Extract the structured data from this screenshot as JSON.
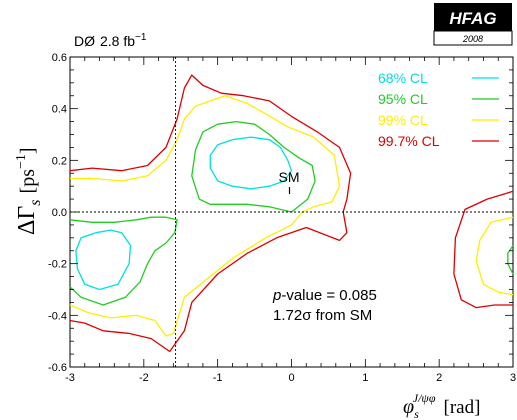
{
  "chart_data": {
    "type": "line",
    "experiment": "DØ",
    "luminosity": "2.8 fb",
    "luminosity_exp": "−1",
    "logo": "HFAG",
    "logo_year": "2008",
    "xlabel": "φ",
    "xlabel_sub": "s",
    "xlabel_sup": "J/ψφ",
    "xlabel_unit": "[rad]",
    "ylabel": "ΔΓ",
    "ylabel_sub": "s",
    "ylabel_unit": "[ps",
    "ylabel_unit_exp": "−1",
    "ylabel_unit_close": "]",
    "xlim": [
      -3,
      3
    ],
    "ylim": [
      -0.6,
      0.6
    ],
    "xticks": [
      "-3",
      "-2",
      "-1",
      "0",
      "1",
      "2",
      "3"
    ],
    "yticks": [
      "-0.6",
      "-0.4",
      "-0.2",
      "0.0",
      "0.2",
      "0.4",
      "0.6"
    ],
    "reference_lines": {
      "x": -1.57,
      "y": 0.0
    },
    "sm_point": {
      "label": "SM",
      "x": 0.0,
      "y": 0.085
    },
    "annotation": {
      "line1_italic": "p",
      "line1_rest": "-value = 0.085",
      "line2": "1.72σ from SM"
    },
    "series": [
      {
        "name": "68% CL",
        "color": "#00E0E0",
        "contours": [
          [
            [
              -1.0,
              0.12
            ],
            [
              -1.1,
              0.17
            ],
            [
              -1.1,
              0.22
            ],
            [
              -1.0,
              0.26
            ],
            [
              -0.8,
              0.28
            ],
            [
              -0.55,
              0.29
            ],
            [
              -0.3,
              0.28
            ],
            [
              -0.15,
              0.25
            ],
            [
              -0.05,
              0.2
            ],
            [
              0.0,
              0.16
            ],
            [
              -0.1,
              0.12
            ],
            [
              -0.3,
              0.1
            ],
            [
              -0.55,
              0.09
            ],
            [
              -0.8,
              0.1
            ],
            [
              -1.0,
              0.12
            ]
          ],
          [
            [
              -2.65,
              -0.08
            ],
            [
              -2.85,
              -0.1
            ],
            [
              -2.92,
              -0.15
            ],
            [
              -2.9,
              -0.22
            ],
            [
              -2.8,
              -0.28
            ],
            [
              -2.6,
              -0.3
            ],
            [
              -2.35,
              -0.28
            ],
            [
              -2.2,
              -0.2
            ],
            [
              -2.18,
              -0.13
            ],
            [
              -2.3,
              -0.08
            ],
            [
              -2.45,
              -0.07
            ],
            [
              -2.65,
              -0.08
            ]
          ]
        ]
      },
      {
        "name": "95% CL",
        "color": "#22CC22",
        "contours": [
          [
            [
              -1.25,
              0.05
            ],
            [
              -1.35,
              0.14
            ],
            [
              -1.3,
              0.24
            ],
            [
              -1.2,
              0.31
            ],
            [
              -1.0,
              0.34
            ],
            [
              -0.75,
              0.35
            ],
            [
              -0.5,
              0.34
            ],
            [
              -0.3,
              0.3
            ],
            [
              -0.1,
              0.25
            ],
            [
              0.1,
              0.21
            ],
            [
              0.28,
              0.18
            ],
            [
              0.32,
              0.12
            ],
            [
              0.22,
              0.05
            ],
            [
              0.0,
              0.0
            ],
            [
              -0.3,
              0.02
            ],
            [
              -0.6,
              0.03
            ],
            [
              -0.9,
              0.03
            ],
            [
              -1.1,
              0.03
            ],
            [
              -1.25,
              0.05
            ]
          ],
          [
            [
              -3.0,
              -0.29
            ],
            [
              -2.85,
              -0.33
            ],
            [
              -2.55,
              -0.36
            ],
            [
              -2.25,
              -0.33
            ],
            [
              -2.05,
              -0.27
            ],
            [
              -1.95,
              -0.2
            ],
            [
              -1.85,
              -0.15
            ],
            [
              -1.7,
              -0.12
            ],
            [
              -1.58,
              -0.08
            ],
            [
              -1.55,
              -0.03
            ],
            [
              -1.7,
              -0.02
            ],
            [
              -1.9,
              -0.02
            ],
            [
              -2.1,
              -0.03
            ],
            [
              -2.4,
              -0.04
            ],
            [
              -2.7,
              -0.04
            ],
            [
              -3.0,
              -0.03
            ]
          ],
          [
            [
              3.0,
              -0.13
            ],
            [
              2.93,
              -0.16
            ],
            [
              2.93,
              -0.2
            ],
            [
              3.0,
              -0.24
            ]
          ]
        ]
      },
      {
        "name": "99% CL",
        "color": "#FFEE00",
        "contours": [
          [
            [
              -3.0,
              0.13
            ],
            [
              -2.7,
              0.13
            ],
            [
              -2.3,
              0.12
            ],
            [
              -1.95,
              0.14
            ],
            [
              -1.7,
              0.2
            ],
            [
              -1.55,
              0.28
            ],
            [
              -1.45,
              0.36
            ],
            [
              -1.3,
              0.41
            ],
            [
              -1.1,
              0.43
            ],
            [
              -0.9,
              0.45
            ],
            [
              -0.6,
              0.42
            ],
            [
              -0.35,
              0.38
            ],
            [
              -0.05,
              0.33
            ],
            [
              0.3,
              0.29
            ],
            [
              0.58,
              0.22
            ],
            [
              0.65,
              0.1
            ],
            [
              0.55,
              0.04
            ],
            [
              0.3,
              0.02
            ],
            [
              0.15,
              0.0
            ],
            [
              0.0,
              -0.05
            ],
            [
              -0.35,
              -0.1
            ],
            [
              -0.8,
              -0.18
            ],
            [
              -1.15,
              -0.26
            ],
            [
              -1.45,
              -0.33
            ],
            [
              -1.6,
              -0.47
            ],
            [
              -1.7,
              -0.48
            ],
            [
              -1.85,
              -0.42
            ],
            [
              -2.1,
              -0.4
            ],
            [
              -2.45,
              -0.41
            ],
            [
              -2.75,
              -0.39
            ],
            [
              -3.0,
              -0.36
            ]
          ],
          [
            [
              3.0,
              -0.02
            ],
            [
              2.7,
              -0.04
            ],
            [
              2.55,
              -0.11
            ],
            [
              2.5,
              -0.19
            ],
            [
              2.6,
              -0.28
            ],
            [
              2.8,
              -0.31
            ],
            [
              3.0,
              -0.32
            ]
          ]
        ]
      },
      {
        "name": "99.7% CL",
        "color": "#DD0000",
        "contours": [
          [
            [
              -3.0,
              0.16
            ],
            [
              -2.7,
              0.17
            ],
            [
              -2.3,
              0.16
            ],
            [
              -1.95,
              0.18
            ],
            [
              -1.7,
              0.25
            ],
            [
              -1.55,
              0.36
            ],
            [
              -1.45,
              0.48
            ],
            [
              -1.35,
              0.53
            ],
            [
              -1.2,
              0.49
            ],
            [
              -0.95,
              0.46
            ],
            [
              -0.65,
              0.45
            ],
            [
              -0.3,
              0.43
            ],
            [
              0.0,
              0.37
            ],
            [
              0.35,
              0.31
            ],
            [
              0.65,
              0.25
            ],
            [
              0.8,
              0.15
            ],
            [
              0.75,
              0.05
            ],
            [
              0.7,
              0.0
            ],
            [
              0.75,
              -0.08
            ],
            [
              0.65,
              -0.11
            ],
            [
              0.2,
              -0.06
            ],
            [
              -0.2,
              -0.1
            ],
            [
              -0.6,
              -0.16
            ],
            [
              -1.0,
              -0.24
            ],
            [
              -1.35,
              -0.35
            ],
            [
              -1.45,
              -0.46
            ],
            [
              -1.65,
              -0.54
            ],
            [
              -1.9,
              -0.49
            ],
            [
              -2.2,
              -0.47
            ],
            [
              -2.55,
              -0.46
            ],
            [
              -2.8,
              -0.43
            ],
            [
              -3.0,
              -0.42
            ]
          ],
          [
            [
              3.0,
              0.08
            ],
            [
              2.65,
              0.05
            ],
            [
              2.35,
              0.01
            ],
            [
              2.22,
              -0.1
            ],
            [
              2.2,
              -0.24
            ],
            [
              2.3,
              -0.34
            ],
            [
              2.5,
              -0.37
            ],
            [
              2.75,
              -0.36
            ],
            [
              3.0,
              -0.36
            ]
          ]
        ]
      }
    ]
  }
}
